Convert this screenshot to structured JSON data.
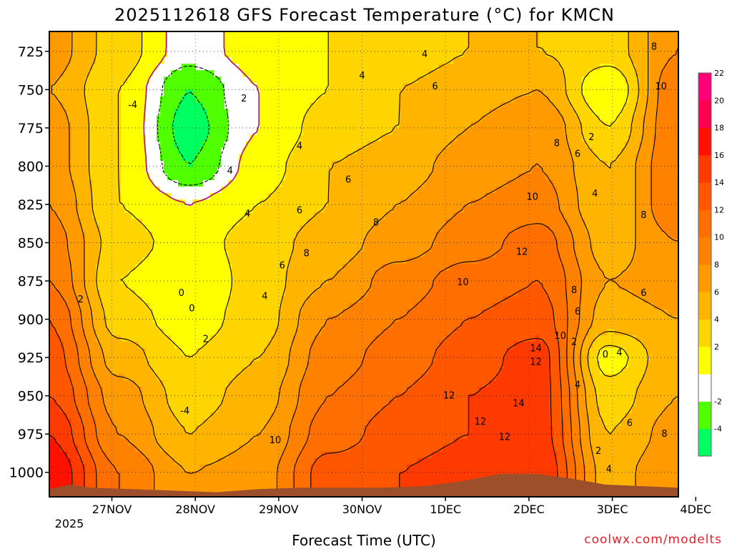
{
  "colors": {
    "terrain": "#9c4f2a",
    "frame": "#000000",
    "freezing_line": "#b0206a"
  },
  "chart_data": {
    "type": "heatmap",
    "title": "2025112618 GFS Forecast Temperature (°C) for KMCN",
    "xlabel": "Forecast Time (UTC)",
    "ylabel": "Pressure (hPa)",
    "credit": "coolwx.com/modelts",
    "y_ticks": [
      725,
      750,
      775,
      800,
      825,
      850,
      875,
      900,
      925,
      950,
      975,
      1000
    ],
    "y_range_hPa": [
      712,
      1016
    ],
    "x_ticks": [
      "27NOV",
      "28NOV",
      "29NOV",
      "30NOV",
      "1DEC",
      "2DEC",
      "3DEC",
      "4DEC"
    ],
    "x_range_hours": [
      0,
      181
    ],
    "x_year_label": "2025",
    "colorbar": {
      "levels": [
        -6,
        -4,
        -2,
        0,
        2,
        4,
        6,
        8,
        10,
        12,
        14,
        16,
        18,
        20,
        22,
        24
      ],
      "labels": [
        "-4",
        "-2",
        "2",
        "4",
        "6",
        "8",
        "10",
        "12",
        "14",
        "16",
        "18",
        "20",
        "22"
      ],
      "colors": [
        "#00ff60",
        "#50ff00",
        "#ffffff",
        "#ffff00",
        "#ffd500",
        "#ffb500",
        "#ff9a00",
        "#ff8100",
        "#ff6e00",
        "#ff5600",
        "#ff3a00",
        "#ff1000",
        "#ff0050",
        "#ff0078"
      ]
    },
    "series": [
      {
        "name": "725 hPa",
        "values": [
          7,
          3,
          -1,
          1,
          2,
          3,
          4,
          4,
          3,
          8
        ]
      },
      {
        "name": "750 hPa",
        "values": [
          6,
          2,
          -4,
          0,
          2,
          4,
          5,
          6,
          0,
          10
        ]
      },
      {
        "name": "775 hPa",
        "values": [
          7,
          2,
          -5,
          0,
          3,
          4,
          6,
          8,
          2,
          10
        ]
      },
      {
        "name": "800 hPa",
        "values": [
          7,
          2,
          -4,
          1,
          4,
          5,
          7,
          8,
          4,
          10
        ]
      },
      {
        "name": "825 hPa",
        "values": [
          8,
          2,
          0,
          2,
          4,
          6,
          8,
          9,
          4,
          10
        ]
      },
      {
        "name": "850 hPa",
        "values": [
          9,
          3,
          1,
          3,
          5,
          7,
          9,
          11,
          5,
          8
        ]
      },
      {
        "name": "875 hPa",
        "values": [
          10,
          2,
          0,
          3,
          6,
          9,
          11,
          12,
          6,
          7
        ]
      },
      {
        "name": "900 hPa",
        "values": [
          12,
          3,
          1,
          3,
          8,
          10,
          12,
          13,
          5,
          6
        ]
      },
      {
        "name": "925 hPa",
        "values": [
          13,
          5,
          2,
          4,
          9,
          11,
          13,
          15,
          1,
          6
        ]
      },
      {
        "name": "950 hPa",
        "values": [
          14,
          7,
          3,
          5,
          10,
          12,
          14,
          15,
          3,
          6
        ]
      },
      {
        "name": "975 hPa",
        "values": [
          16,
          8,
          4,
          6,
          11,
          13,
          14,
          15,
          4,
          7
        ]
      },
      {
        "name": "1000 hPa",
        "values": [
          18,
          10,
          6,
          7,
          13,
          14,
          15,
          16,
          5,
          8
        ]
      }
    ],
    "contour_labels": [
      {
        "text": "-4",
        "t": 24,
        "p": 760
      },
      {
        "text": "-4",
        "t": 39,
        "p": 960
      },
      {
        "text": "0",
        "t": 38,
        "p": 883
      },
      {
        "text": "0",
        "t": 41,
        "p": 893
      },
      {
        "text": "2",
        "t": 9,
        "p": 887
      },
      {
        "text": "2",
        "t": 45,
        "p": 913
      },
      {
        "text": "2",
        "t": 56,
        "p": 756
      },
      {
        "text": "4",
        "t": 52,
        "p": 803
      },
      {
        "text": "4",
        "t": 57,
        "p": 831
      },
      {
        "text": "4",
        "t": 62,
        "p": 885
      },
      {
        "text": "4",
        "t": 72,
        "p": 787
      },
      {
        "text": "4",
        "t": 90,
        "p": 741
      },
      {
        "text": "4",
        "t": 108,
        "p": 727
      },
      {
        "text": "4",
        "t": 152,
        "p": 943
      },
      {
        "text": "4",
        "t": 157,
        "p": 818
      },
      {
        "text": "4",
        "t": 164,
        "p": 922
      },
      {
        "text": "2",
        "t": 151,
        "p": 915
      },
      {
        "text": "2",
        "t": 156,
        "p": 781
      },
      {
        "text": "2",
        "t": 158,
        "p": 986
      },
      {
        "text": "0",
        "t": 160,
        "p": 923
      },
      {
        "text": "4",
        "t": 161,
        "p": 998
      },
      {
        "text": "6",
        "t": 67,
        "p": 865
      },
      {
        "text": "6",
        "t": 72,
        "p": 829
      },
      {
        "text": "6",
        "t": 86,
        "p": 809
      },
      {
        "text": "6",
        "t": 111,
        "p": 748
      },
      {
        "text": "6",
        "t": 152,
        "p": 792
      },
      {
        "text": "6",
        "t": 152,
        "p": 895
      },
      {
        "text": "6",
        "t": 167,
        "p": 968
      },
      {
        "text": "6",
        "t": 171,
        "p": 883
      },
      {
        "text": "8",
        "t": 74,
        "p": 857
      },
      {
        "text": "8",
        "t": 94,
        "p": 837
      },
      {
        "text": "8",
        "t": 146,
        "p": 785
      },
      {
        "text": "8",
        "t": 151,
        "p": 881
      },
      {
        "text": "8",
        "t": 171,
        "p": 832
      },
      {
        "text": "8",
        "t": 174,
        "p": 722
      },
      {
        "text": "8",
        "t": 177,
        "p": 975
      },
      {
        "text": "10",
        "t": 65,
        "p": 979
      },
      {
        "text": "10",
        "t": 119,
        "p": 876
      },
      {
        "text": "10",
        "t": 139,
        "p": 820
      },
      {
        "text": "10",
        "t": 147,
        "p": 911
      },
      {
        "text": "10",
        "t": 176,
        "p": 748
      },
      {
        "text": "12",
        "t": 115,
        "p": 950
      },
      {
        "text": "12",
        "t": 124,
        "p": 967
      },
      {
        "text": "12",
        "t": 131,
        "p": 977
      },
      {
        "text": "12",
        "t": 136,
        "p": 856
      },
      {
        "text": "12",
        "t": 140,
        "p": 928
      },
      {
        "text": "14",
        "t": 135,
        "p": 955
      },
      {
        "text": "14",
        "t": 140,
        "p": 919
      }
    ]
  }
}
